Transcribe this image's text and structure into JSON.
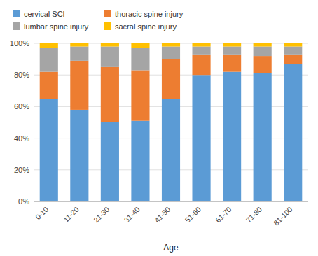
{
  "chart_data": {
    "type": "bar",
    "stacked": true,
    "categories": [
      "0-10",
      "11-20",
      "21-30",
      "31-40",
      "41-50",
      "51-60",
      "61-70",
      "71-80",
      "81-100"
    ],
    "series": [
      {
        "name": "cervical SCI",
        "color": "#5B9BD5",
        "values": [
          65,
          58,
          50,
          51,
          65,
          80,
          82,
          81,
          87
        ]
      },
      {
        "name": "thoracic spine injury",
        "color": "#ED7D31",
        "values": [
          17,
          31,
          35,
          32,
          25,
          13,
          11,
          11,
          6
        ]
      },
      {
        "name": "lumbar spine injury",
        "color": "#A5A5A5",
        "values": [
          15,
          9,
          13,
          14,
          8,
          5,
          5,
          6,
          5
        ]
      },
      {
        "name": "sacral spine injury",
        "color": "#FFC000",
        "values": [
          3,
          2,
          2,
          3,
          2,
          2,
          2,
          2,
          2
        ]
      }
    ],
    "x_label": "Age",
    "ylim": [
      0,
      100
    ],
    "yticks": [
      {
        "value": 0,
        "label": "0%"
      },
      {
        "value": 20,
        "label": "20%"
      },
      {
        "value": 40,
        "label": "40%"
      },
      {
        "value": 60,
        "label": "60%"
      },
      {
        "value": 80,
        "label": "80%"
      },
      {
        "value": 100,
        "label": "100%"
      }
    ],
    "grid": true,
    "legend": "upper left"
  }
}
